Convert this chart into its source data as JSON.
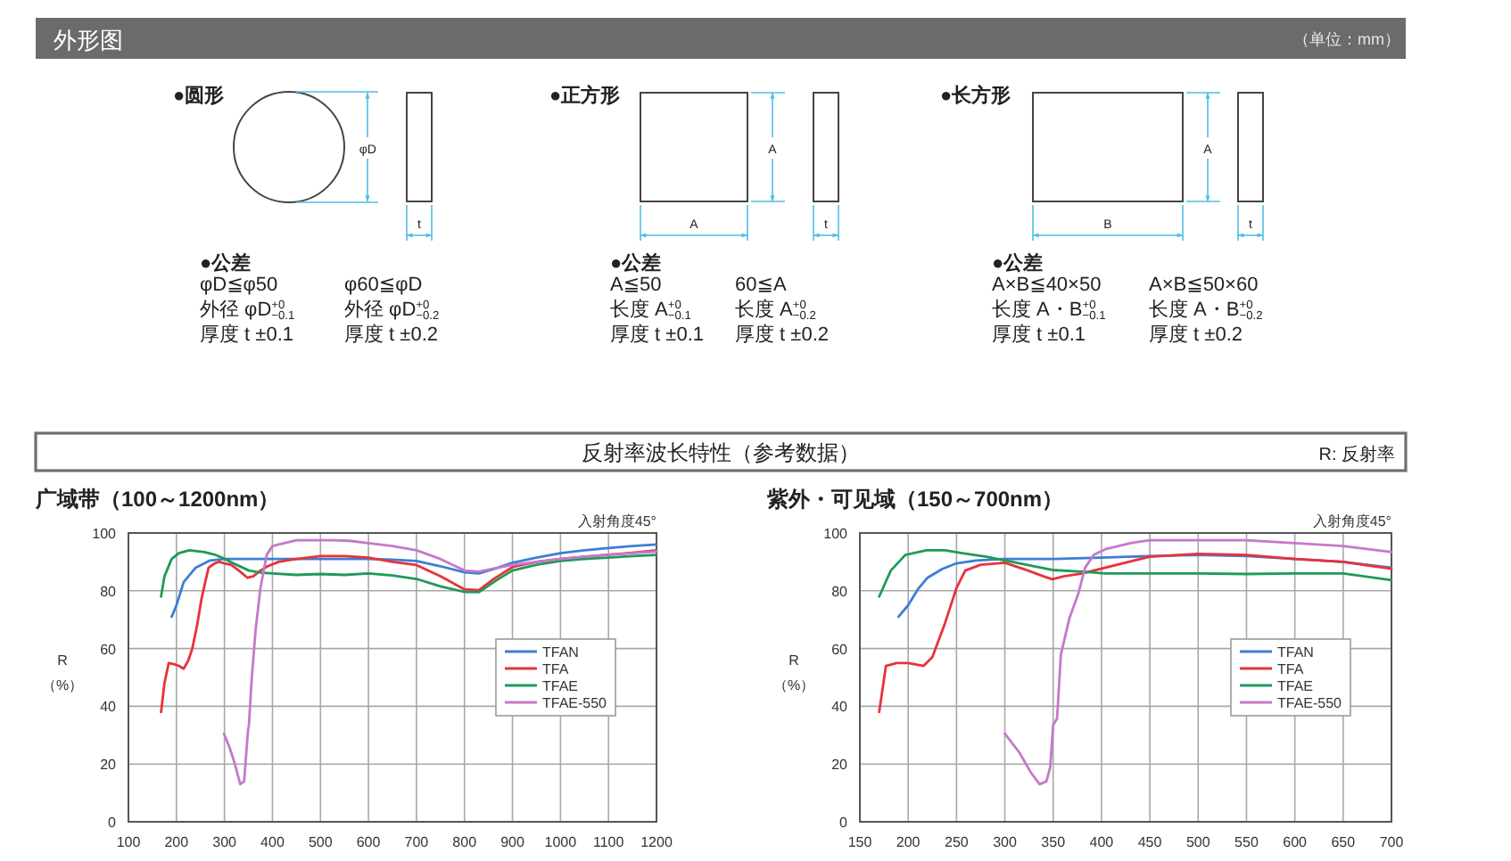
{
  "chart_data": [
    {
      "type": "other",
      "title": "外形图",
      "annotations": [
        "（单位：mm）",
        "●圆形",
        "φD",
        "t",
        "●公差",
        "φD≦φ50",
        "φ60≦φD",
        "外径 φD$^{+0}$$_{−0.1}$",
        "外径 φD$^{+0}$$_{−0.2}$",
        "厚度 t ±0.1",
        "厚度 t ±0.2",
        "●正方形",
        "A",
        "A",
        "t",
        "●公差",
        "A≦50",
        "60≦A",
        "长度 A$^{+0}$$_{−0.1}$",
        "长度 A$^{+0}$$_{−0.2}$",
        "厚度 t ±0.1",
        "厚度 t ±0.2",
        "●长方形",
        "A",
        "B",
        "t",
        "●公差",
        "A×B≦40×50",
        "A×B≦50×60",
        "长度 A・B$^{+0}$$_{−0.1}$",
        "长度 A・B$^{+0}$$_{−0.2}$",
        "厚度 t ±0.1",
        "厚度 t ±0.2"
      ]
    },
    {
      "type": "other",
      "title": "反射率波长特性（参考数据）",
      "annotations": [
        "R: 反射率"
      ]
    },
    {
      "type": "line",
      "title": "广域带（100～1200nm）",
      "ylabel": "R\n（%）",
      "xlim": [
        100,
        1200
      ],
      "xticks": [
        100,
        200,
        300,
        400,
        500,
        600,
        700,
        800,
        900,
        1000,
        1100,
        1200
      ],
      "ylim": [
        0,
        100
      ],
      "yticks": [
        0,
        20,
        40,
        60,
        80,
        100
      ],
      "grid": true,
      "legend": "right",
      "annotations": [
        "入射角度45°"
      ],
      "series": [
        {
          "name": "TFAN",
          "color": "#3b7fd4",
          "x": [
            190,
            200,
            215,
            240,
            270,
            300,
            350,
            400,
            450,
            500,
            550,
            600,
            650,
            700,
            750,
            800,
            830,
            870,
            900,
            950,
            1000,
            1050,
            1100,
            1150,
            1200
          ],
          "values": [
            71,
            75,
            83,
            88,
            90.5,
            91,
            91,
            91,
            91,
            91,
            91,
            91,
            90.8,
            90.3,
            88.5,
            86.4,
            86,
            88,
            89.7,
            91.5,
            93,
            94,
            94.8,
            95.5,
            96
          ]
        },
        {
          "name": "TFA",
          "color": "#e8323c",
          "x": [
            168,
            175,
            184,
            196,
            205,
            215,
            225,
            233,
            243,
            252,
            260,
            267,
            280,
            289,
            300,
            314,
            330,
            348,
            360,
            375,
            390,
            413,
            450,
            500,
            550,
            600,
            650,
            700,
            750,
            800,
            830,
            860,
            900,
            950,
            1000,
            1050,
            1100,
            1150,
            1200
          ],
          "values": [
            38,
            48,
            55,
            54.5,
            54,
            53,
            56,
            60,
            68,
            77,
            83,
            88,
            89.5,
            90,
            89.5,
            89,
            87,
            84.5,
            85,
            87,
            88.5,
            90,
            91,
            92,
            92,
            91.5,
            90,
            88.9,
            85,
            80.5,
            80.2,
            84,
            88.2,
            90,
            91,
            91.8,
            92.5,
            93.2,
            94
          ]
        },
        {
          "name": "TFAE",
          "color": "#1f9a5a",
          "x": [
            168,
            175,
            190,
            205,
            227,
            258,
            280,
            301,
            325,
            351,
            375,
            400,
            450,
            500,
            550,
            600,
            650,
            700,
            750,
            800,
            830,
            870,
            900,
            950,
            1000,
            1050,
            1100,
            1150,
            1200
          ],
          "values": [
            78,
            85,
            91,
            93,
            94,
            93.4,
            92.5,
            91,
            89,
            87,
            86.3,
            86,
            85.5,
            85.8,
            85.5,
            86,
            85.3,
            84.1,
            81.5,
            79.6,
            79.5,
            84,
            87,
            89,
            90.3,
            91,
            91.5,
            92,
            92.4
          ]
        },
        {
          "name": "TFAE-550",
          "color": "#c678cc",
          "x": [
            299,
            310,
            320,
            333,
            341,
            349,
            351,
            357,
            365,
            375,
            388,
            400,
            413,
            450,
            500,
            525,
            560,
            600,
            650,
            700,
            750,
            800,
            830,
            870,
            900,
            950,
            1000,
            1050,
            1100,
            1150,
            1200
          ],
          "values": [
            30.5,
            26,
            21,
            13,
            14,
            31.5,
            33.6,
            50,
            66.6,
            81,
            92.4,
            95.5,
            96,
            97.5,
            97.5,
            97.5,
            97.3,
            96.5,
            95.5,
            94,
            91,
            87,
            86.6,
            88,
            88.9,
            90,
            91,
            91.8,
            92.5,
            93,
            93.6
          ]
        }
      ]
    },
    {
      "type": "line",
      "title": "紫外・可见域（150～700nm）",
      "ylabel": "R\n（%）",
      "xlim": [
        150,
        700
      ],
      "xticks": [
        150,
        200,
        250,
        300,
        350,
        400,
        450,
        500,
        550,
        600,
        650,
        700
      ],
      "ylim": [
        0,
        100
      ],
      "yticks": [
        0,
        20,
        40,
        60,
        80,
        100
      ],
      "grid": true,
      "legend": "right",
      "annotations": [
        "入射角度45°"
      ],
      "series": [
        {
          "name": "TFAN",
          "color": "#3b7fd4",
          "x": [
            190,
            200,
            210,
            220,
            235,
            250,
            270,
            300,
            350,
            400,
            450,
            500,
            550,
            600,
            650,
            700
          ],
          "values": [
            71,
            75,
            80.5,
            84.5,
            87.5,
            89.5,
            90.5,
            91,
            91,
            91.5,
            92,
            92.4,
            92,
            91,
            90,
            88
          ]
        },
        {
          "name": "TFA",
          "color": "#e8323c",
          "x": [
            170,
            177,
            188,
            200,
            216,
            225,
            238,
            250,
            259,
            275,
            300,
            324,
            340,
            349,
            361,
            380,
            404,
            450,
            500,
            550,
            600,
            650,
            700
          ],
          "values": [
            38,
            54,
            55,
            55,
            54,
            57,
            68.7,
            81,
            87,
            89,
            89.7,
            87,
            85,
            84,
            85,
            86,
            88,
            91.8,
            92.8,
            92.4,
            91,
            90,
            87.6
          ]
        },
        {
          "name": "TFAE",
          "color": "#1f9a5a",
          "x": [
            170,
            182,
            197,
            219,
            238,
            256,
            281,
            312,
            349,
            380,
            404,
            450,
            500,
            550,
            600,
            650,
            700
          ],
          "values": [
            78,
            87,
            92.4,
            94,
            94,
            93,
            91.8,
            89.7,
            87.2,
            86.6,
            86,
            86,
            86,
            85.8,
            86,
            86,
            83.7
          ]
        },
        {
          "name": "TFAE-550",
          "color": "#c678cc",
          "x": [
            300,
            315,
            327,
            336,
            343,
            347,
            350,
            354,
            358,
            367,
            376,
            383,
            392,
            404,
            430,
            450,
            500,
            550,
            600,
            650,
            700
          ],
          "values": [
            30.5,
            24,
            17,
            13,
            14,
            19,
            33.6,
            35.7,
            58,
            70.7,
            79,
            88,
            92.4,
            94.4,
            96.5,
            97.5,
            97.5,
            97.5,
            96.5,
            95.5,
            93.4
          ]
        }
      ]
    }
  ]
}
